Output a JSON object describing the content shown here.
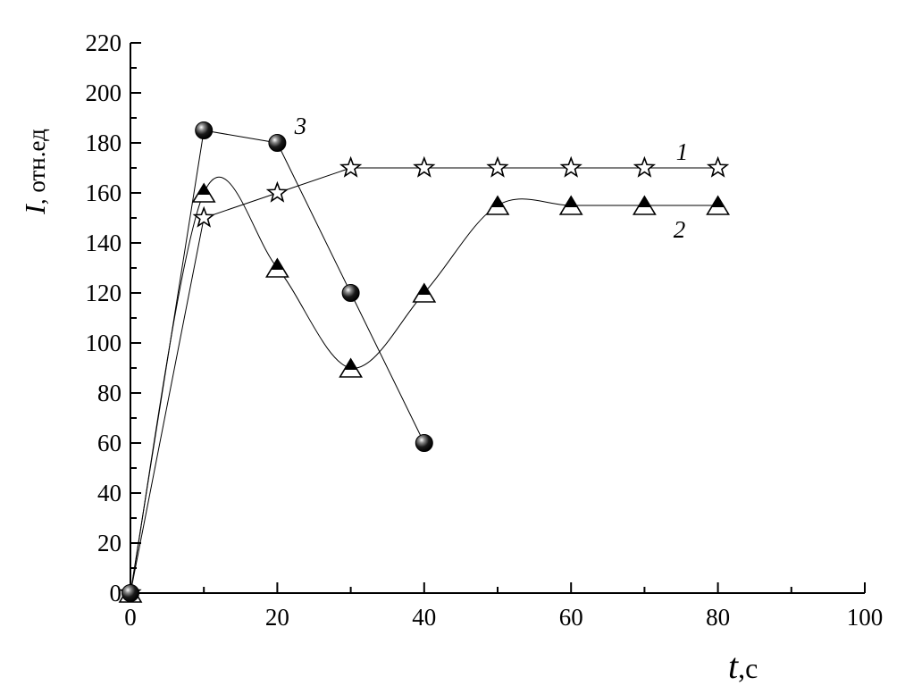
{
  "chart_data": {
    "type": "line",
    "title": "",
    "xlabel_symbol": "t",
    "xlabel_unit": ",с",
    "ylabel_symbol": "I",
    "ylabel_unit": ", отн.ед",
    "xlim": [
      0,
      100
    ],
    "ylim": [
      0,
      220
    ],
    "x_major_ticks": [
      0,
      20,
      40,
      60,
      80,
      100
    ],
    "x_minor_step": 10,
    "y_major_ticks": [
      0,
      20,
      40,
      60,
      80,
      100,
      120,
      140,
      160,
      180,
      200,
      220
    ],
    "y_minor_step": 10,
    "grid": false,
    "legend": "none",
    "series": [
      {
        "name": "1",
        "marker": "star",
        "curve": "linear",
        "x": [
          0,
          10,
          20,
          30,
          40,
          50,
          60,
          70,
          80
        ],
        "y": [
          0,
          150,
          160,
          170,
          170,
          170,
          170,
          170,
          170
        ]
      },
      {
        "name": "2",
        "marker": "half-filled-triangle",
        "curve": "smooth",
        "x": [
          0,
          10,
          20,
          30,
          40,
          50,
          60,
          70,
          80
        ],
        "y": [
          0,
          160,
          130,
          90,
          120,
          155,
          155,
          155,
          155
        ]
      },
      {
        "name": "3",
        "marker": "sphere",
        "curve": "linear",
        "x": [
          0,
          10,
          20,
          30,
          40
        ],
        "y": [
          0,
          185,
          180,
          120,
          60
        ]
      }
    ]
  }
}
